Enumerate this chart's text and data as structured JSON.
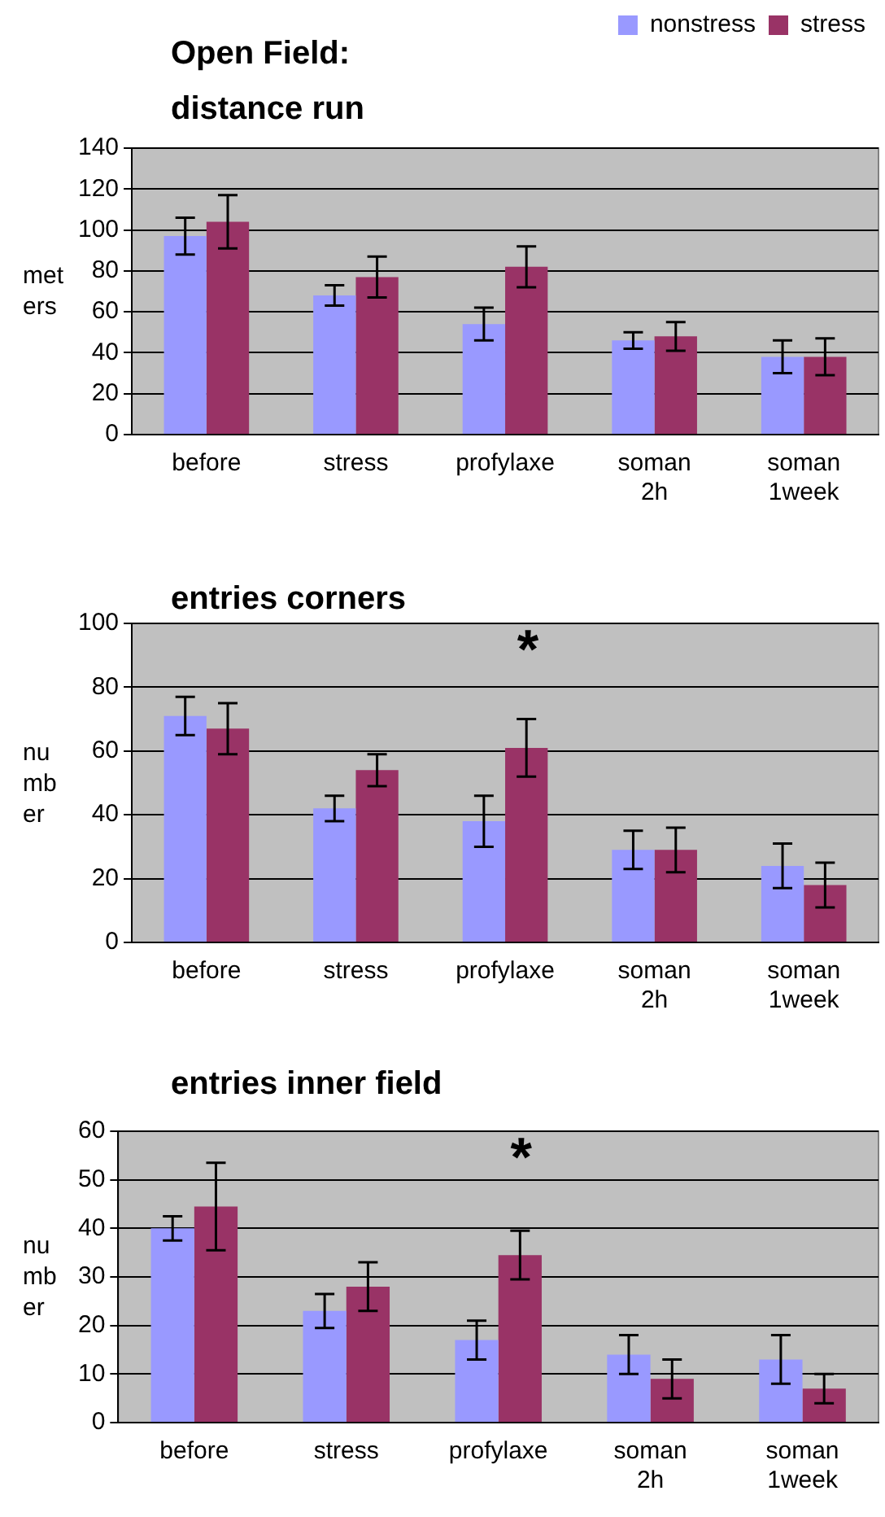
{
  "chart_data": [
    {
      "type": "bar",
      "title": "Open Field: distance run",
      "ylabel": "meters",
      "categories": [
        "before",
        "stress",
        "profylaxe",
        "soman 2h",
        "soman 1week"
      ],
      "series": [
        {
          "name": "nonstress",
          "color": "#9999ff",
          "values": [
            97,
            68,
            54,
            46,
            38
          ],
          "errors": [
            9,
            5,
            8,
            4,
            8
          ]
        },
        {
          "name": "stress",
          "color": "#993366",
          "values": [
            104,
            77,
            82,
            48,
            38
          ],
          "errors": [
            13,
            10,
            10,
            7,
            9
          ]
        }
      ],
      "ylim": [
        0,
        140
      ],
      "yticks": [
        0,
        20,
        40,
        60,
        80,
        100,
        120,
        140
      ],
      "grid": "y",
      "legend": "top right"
    },
    {
      "type": "bar",
      "title": "entries corners",
      "ylabel": "number",
      "categories": [
        "before",
        "stress",
        "profylaxe",
        "soman 2h",
        "soman 1week"
      ],
      "series": [
        {
          "color": "#9999ff",
          "values": [
            71,
            42,
            38,
            29,
            24
          ],
          "errors": [
            6,
            4,
            8,
            6,
            7
          ]
        },
        {
          "color": "#993366",
          "values": [
            67,
            54,
            61,
            29,
            18
          ],
          "errors": [
            8,
            5,
            9,
            7,
            7
          ]
        }
      ],
      "ylim": [
        0,
        100
      ],
      "yticks": [
        0,
        20,
        40,
        60,
        80,
        100
      ],
      "grid": "y",
      "annotations": [
        "*"
      ]
    },
    {
      "type": "bar",
      "title": "entries inner field",
      "ylabel": "number",
      "categories": [
        "before",
        "stress",
        "profylaxe",
        "soman 2h",
        "soman 1week"
      ],
      "series": [
        {
          "color": "#9999ff",
          "values": [
            40,
            23,
            17,
            14,
            13
          ],
          "errors": [
            2.5,
            3.5,
            4,
            4,
            5
          ]
        },
        {
          "color": "#993366",
          "values": [
            44.5,
            28,
            34.5,
            9,
            7
          ],
          "errors": [
            9,
            5,
            5,
            4,
            3
          ]
        }
      ],
      "ylim": [
        0,
        60
      ],
      "yticks": [
        0,
        10,
        20,
        30,
        40,
        50,
        60
      ],
      "grid": "y",
      "annotations": [
        "*"
      ]
    }
  ]
}
